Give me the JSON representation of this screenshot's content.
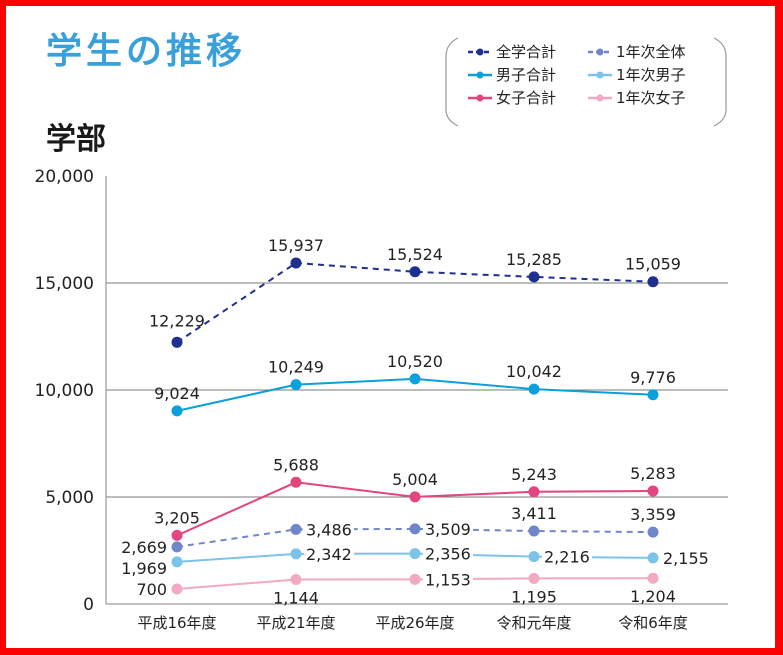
{
  "title": "学生の推移",
  "subtitle": "学部",
  "chart_data": {
    "type": "line",
    "title": "学部",
    "categories": [
      "平成16年度",
      "平成21年度",
      "平成26年度",
      "令和元年度",
      "令和6年度"
    ],
    "ylim": [
      0,
      20000
    ],
    "yticks": [
      0,
      5000,
      10000,
      15000,
      20000
    ],
    "ytick_labels": [
      "0",
      "5,000",
      "10,000",
      "15,000",
      "20,000"
    ],
    "grid": true,
    "legend_position": "top-right",
    "xlabel": "",
    "ylabel": "",
    "series": [
      {
        "name": "全学合計",
        "color": "#1f2f8f",
        "dashed": true,
        "values": [
          12229,
          15937,
          15524,
          15285,
          15059
        ],
        "labels": [
          "12,229",
          "15,937",
          "15,524",
          "15,285",
          "15,059"
        ]
      },
      {
        "name": "男子合計",
        "color": "#0aa0dc",
        "dashed": false,
        "values": [
          9024,
          10249,
          10520,
          10042,
          9776
        ],
        "labels": [
          "9,024",
          "10,249",
          "10,520",
          "10,042",
          "9,776"
        ]
      },
      {
        "name": "女子合計",
        "color": "#e2457f",
        "dashed": false,
        "values": [
          3205,
          5688,
          5004,
          5243,
          5283
        ],
        "labels": [
          "3,205",
          "5,688",
          "5,004",
          "5,243",
          "5,283"
        ]
      },
      {
        "name": "1年次全体",
        "color": "#6f86c8",
        "dashed": true,
        "values": [
          2669,
          3486,
          3509,
          3411,
          3359
        ],
        "labels": [
          "2,669",
          "3,486",
          "3,509",
          "3,411",
          "3,359"
        ]
      },
      {
        "name": "1年次男子",
        "color": "#7cc3ea",
        "dashed": false,
        "values": [
          1969,
          2342,
          2356,
          2216,
          2155
        ],
        "labels": [
          "1,969",
          "2,342",
          "2,356",
          "2,216",
          "2,155"
        ]
      },
      {
        "name": "1年次女子",
        "color": "#f2aac0",
        "dashed": false,
        "values": [
          700,
          1144,
          1153,
          1195,
          1204
        ],
        "labels": [
          "700",
          "1,144",
          "1,153",
          "1,195",
          "1,204"
        ]
      }
    ]
  }
}
